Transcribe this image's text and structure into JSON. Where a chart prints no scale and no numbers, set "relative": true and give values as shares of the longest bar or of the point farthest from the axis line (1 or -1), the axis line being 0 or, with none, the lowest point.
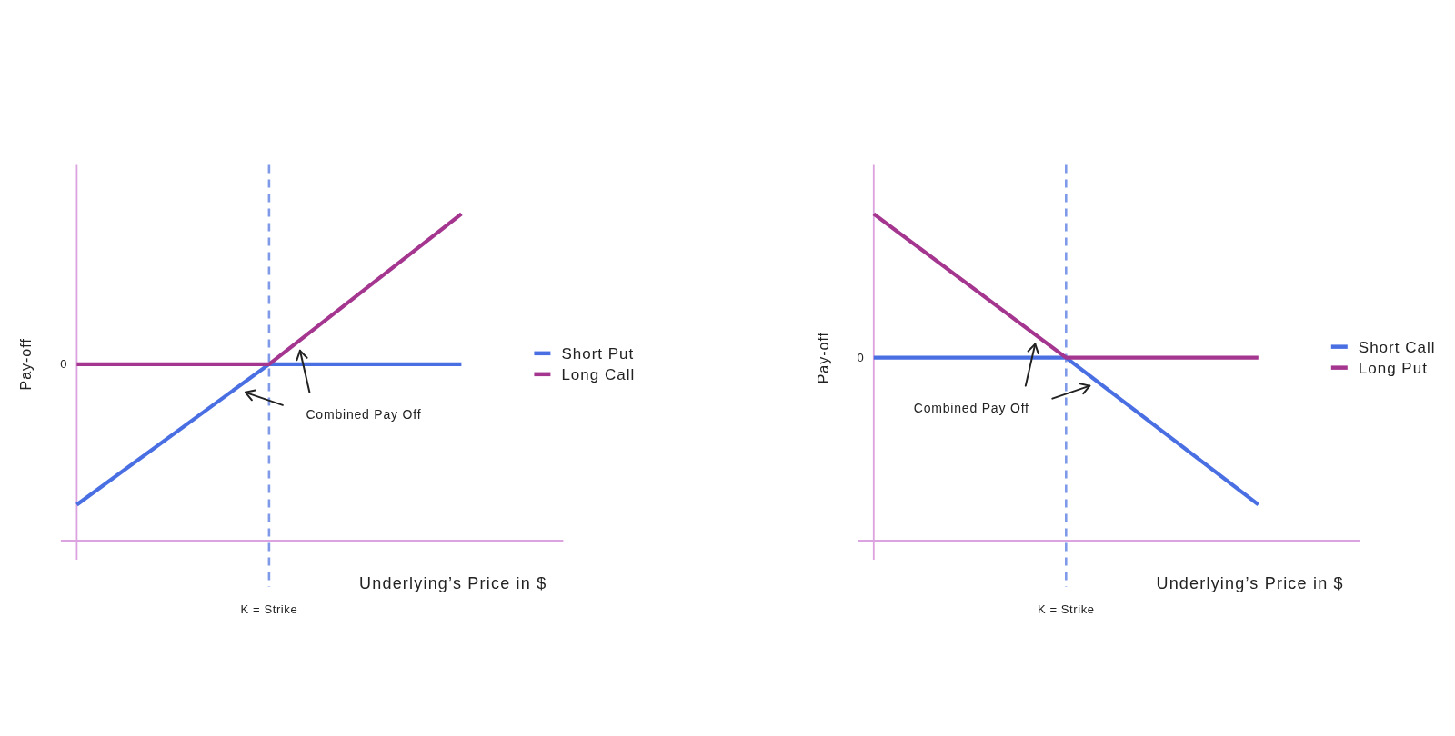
{
  "chart_data": [
    {
      "type": "line",
      "categories": [
        null,
        null,
        null
      ],
      "ylabel": "Pay-off",
      "xlabel": "Underlying’s Price in $",
      "relative": true,
      "legend": "right",
      "series": [
        {
          "name": "Short Put",
          "color": "#4a6fe3",
          "values": [
            0.11,
            0.54,
            0.54
          ]
        },
        {
          "name": "Long Call",
          "color": "#a4368f",
          "values": [
            0.54,
            0.54,
            1
          ]
        }
      ],
      "ref_lines": [
        {
          "axis": "x",
          "label": "K = Strike",
          "color": "#7f9ae8",
          "line_style": "dashed"
        }
      ],
      "annotations": [
        "0",
        "Combined Pay Off"
      ]
    },
    {
      "type": "line",
      "categories": [
        null,
        null,
        null
      ],
      "ylabel": "Pay-off",
      "xlabel": "Underlying’s Price in $",
      "relative": true,
      "legend": "right",
      "series": [
        {
          "name": "Short Call",
          "color": "#4a6fe3",
          "values": [
            0.56,
            0.56,
            0.11
          ]
        },
        {
          "name": "Long Put",
          "color": "#a4368f",
          "values": [
            1,
            0.56,
            0.56
          ]
        }
      ],
      "ref_lines": [
        {
          "axis": "x",
          "label": "K = Strike",
          "color": "#7f9ae8",
          "line_style": "dashed"
        }
      ],
      "annotations": [
        "0",
        "Combined Pay Off"
      ]
    }
  ]
}
